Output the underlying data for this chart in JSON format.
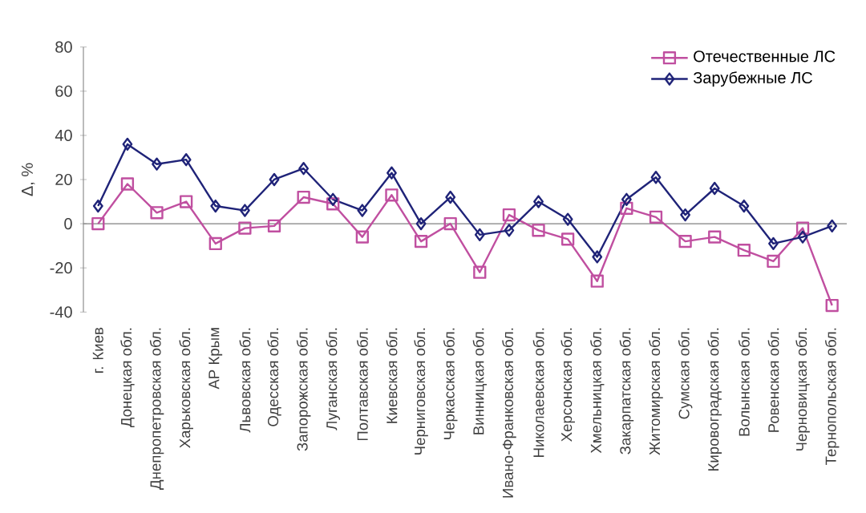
{
  "chart_data": {
    "type": "line",
    "ylabel": "Δ, %",
    "categories": [
      "г. Киев",
      "Донецкая обл.",
      "Днепропетровская обл.",
      "Харьковская обл.",
      "АР Крым",
      "Львовская обл.",
      "Одесская обл.",
      "Запорожская обл.",
      "Луганская обл.",
      "Полтавская обл.",
      "Киевская обл.",
      "Черниговская обл.",
      "Черкасская обл.",
      "Винницкая обл.",
      "Ивано-Франковская обл.",
      "Николаевская обл.",
      "Херсонская обл.",
      "Хмельницкая обл.",
      "Закарпатская обл.",
      "Житомирская обл.",
      "Сумская обл.",
      "Кировоградская обл.",
      "Волынская обл.",
      "Ровенская обл.",
      "Черновицкая обл.",
      "Тернопольская обл."
    ],
    "series": [
      {
        "name": "Отечественные ЛС",
        "color": "#c04fa0",
        "marker": "square",
        "values": [
          0,
          18,
          5,
          10,
          -9,
          -2,
          -1,
          12,
          9,
          -6,
          13,
          -8,
          0,
          -22,
          4,
          -3,
          -7,
          -26,
          7,
          3,
          -8,
          -6,
          -12,
          -17,
          -2,
          -37
        ]
      },
      {
        "name": "Зарубежные ЛС",
        "color": "#1f2378",
        "marker": "diamond",
        "values": [
          8,
          36,
          27,
          29,
          8,
          6,
          20,
          25,
          11,
          6,
          23,
          0,
          12,
          -5,
          -3,
          10,
          2,
          -15,
          11,
          21,
          4,
          16,
          8,
          -9,
          -6,
          -1
        ]
      }
    ],
    "ylim": [
      -40,
      80
    ],
    "yticks": [
      -40,
      -20,
      0,
      20,
      40,
      60,
      80
    ],
    "legend": "top right",
    "line_style": "solid"
  }
}
